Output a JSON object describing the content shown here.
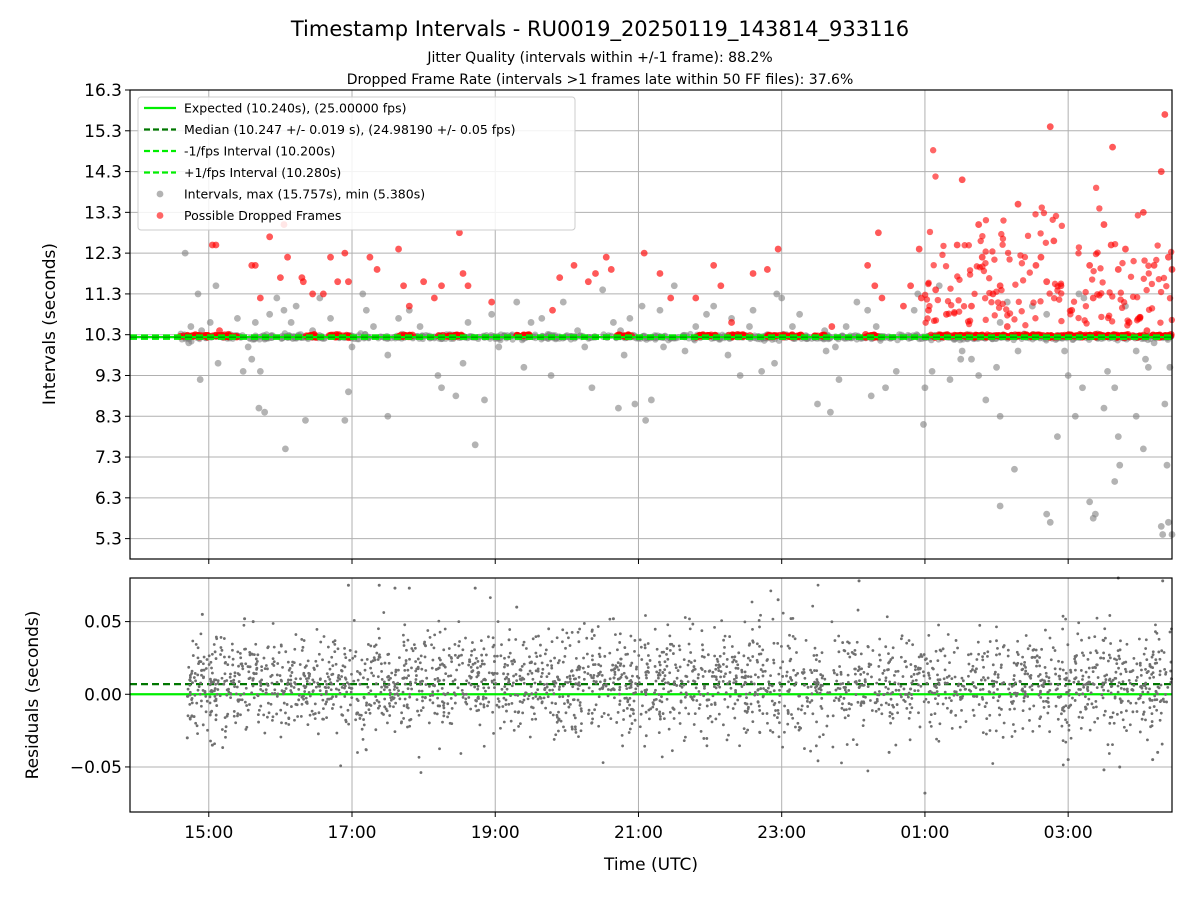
{
  "figure": {
    "title": "Timestamp Intervals - RU0019_20250119_143814_933116",
    "subtitle_1": "Jitter Quality (intervals within +/-1 frame): 88.2%",
    "subtitle_2": "Dropped Frame Rate (intervals >1 frames late within 50 FF files): 37.6%"
  },
  "chart_data": [
    {
      "type": "scatter",
      "panel": "intervals",
      "ylabel": "Intervals (seconds)",
      "xlabel": "",
      "x_unit": "hours since 14:00 UTC on first day",
      "xlim": [
        -0.1,
        14.45
      ],
      "ylim": [
        4.8,
        16.3
      ],
      "yticks": [
        "5.3",
        "6.3",
        "7.3",
        "8.3",
        "9.3",
        "10.3",
        "11.3",
        "12.3",
        "13.3",
        "14.3",
        "15.3",
        "16.3"
      ],
      "grid": true,
      "legend_position": "upper-left",
      "reference_lines": [
        {
          "name": "Expected (10.240s), (25.00000 fps)",
          "y": 10.24,
          "style": "solid",
          "color": "#00ee00"
        },
        {
          "name": "Median (10.247 +/- 0.019 s), (24.98190 +/- 0.05 fps)",
          "y": 10.247,
          "style": "dashed",
          "color": "#007700"
        },
        {
          "name": "-1/fps Interval (10.200s)",
          "y": 10.2,
          "style": "dashed",
          "color": "#00ee00"
        },
        {
          "name": "+1/fps Interval (10.280s)",
          "y": 10.28,
          "style": "dashed",
          "color": "#00ee00"
        }
      ],
      "series": [
        {
          "name": "Intervals, max (15.757s), min (5.380s)",
          "color": "#808080",
          "max": 15.757,
          "min": 5.38
        },
        {
          "name": "Possible Dropped Frames",
          "color": "#ff0000"
        }
      ],
      "gray_outliers": [
        [
          0.67,
          12.3
        ],
        [
          0.72,
          10.1
        ],
        [
          0.75,
          10.5
        ],
        [
          0.85,
          11.3
        ],
        [
          0.88,
          9.2
        ],
        [
          0.9,
          10.4
        ],
        [
          1.02,
          10.6
        ],
        [
          1.1,
          11.5
        ],
        [
          1.13,
          9.6
        ],
        [
          1.3,
          10.3
        ],
        [
          1.4,
          10.7
        ],
        [
          1.48,
          9.4
        ],
        [
          1.55,
          10.0
        ],
        [
          1.6,
          9.7
        ],
        [
          1.65,
          10.6
        ],
        [
          1.72,
          9.4
        ],
        [
          1.7,
          8.5
        ],
        [
          1.78,
          8.4
        ],
        [
          1.85,
          10.8
        ],
        [
          1.95,
          11.2
        ],
        [
          2.05,
          10.9
        ],
        [
          2.07,
          7.5
        ],
        [
          2.15,
          10.6
        ],
        [
          2.22,
          11.0
        ],
        [
          2.35,
          8.2
        ],
        [
          2.45,
          10.4
        ],
        [
          2.55,
          11.2
        ],
        [
          2.7,
          10.7
        ],
        [
          2.9,
          8.2
        ],
        [
          2.95,
          8.9
        ],
        [
          3.0,
          10.0
        ],
        [
          3.15,
          11.3
        ],
        [
          3.2,
          10.9
        ],
        [
          3.3,
          10.5
        ],
        [
          3.5,
          8.3
        ],
        [
          3.5,
          9.8
        ],
        [
          3.65,
          10.7
        ],
        [
          3.8,
          10.9
        ],
        [
          3.95,
          10.5
        ],
        [
          4.2,
          9.3
        ],
        [
          4.25,
          9.0
        ],
        [
          4.32,
          10.3
        ],
        [
          4.45,
          8.8
        ],
        [
          4.55,
          9.6
        ],
        [
          4.62,
          10.6
        ],
        [
          4.72,
          7.6
        ],
        [
          4.85,
          8.7
        ],
        [
          4.95,
          10.8
        ],
        [
          5.05,
          10.0
        ],
        [
          5.3,
          11.1
        ],
        [
          5.4,
          9.5
        ],
        [
          5.5,
          10.6
        ],
        [
          5.65,
          10.7
        ],
        [
          5.78,
          9.3
        ],
        [
          5.95,
          11.1
        ],
        [
          6.15,
          10.4
        ],
        [
          6.25,
          10.0
        ],
        [
          6.35,
          9.0
        ],
        [
          6.5,
          11.4
        ],
        [
          6.65,
          10.6
        ],
        [
          6.72,
          8.5
        ],
        [
          6.75,
          10.4
        ],
        [
          6.8,
          9.8
        ],
        [
          6.88,
          10.7
        ],
        [
          6.95,
          8.6
        ],
        [
          7.05,
          11.0
        ],
        [
          7.1,
          8.2
        ],
        [
          7.18,
          8.7
        ],
        [
          7.3,
          10.9
        ],
        [
          7.35,
          10.0
        ],
        [
          7.5,
          11.5
        ],
        [
          7.65,
          9.9
        ],
        [
          7.8,
          10.5
        ],
        [
          7.95,
          10.8
        ],
        [
          8.05,
          11.0
        ],
        [
          8.25,
          9.8
        ],
        [
          8.3,
          10.7
        ],
        [
          8.42,
          9.3
        ],
        [
          8.55,
          10.5
        ],
        [
          8.6,
          10.9
        ],
        [
          8.72,
          9.4
        ],
        [
          8.8,
          10.3
        ],
        [
          8.9,
          9.6
        ],
        [
          8.93,
          11.3
        ],
        [
          9.0,
          11.2
        ],
        [
          9.15,
          10.5
        ],
        [
          9.25,
          10.8
        ],
        [
          9.35,
          10.2
        ],
        [
          9.5,
          8.6
        ],
        [
          9.6,
          10.4
        ],
        [
          9.62,
          9.9
        ],
        [
          9.68,
          8.4
        ],
        [
          9.75,
          10.0
        ],
        [
          9.8,
          9.2
        ],
        [
          9.9,
          10.5
        ],
        [
          10.05,
          11.1
        ],
        [
          10.2,
          10.9
        ],
        [
          10.25,
          8.8
        ],
        [
          10.32,
          10.5
        ],
        [
          10.45,
          9.0
        ],
        [
          10.6,
          9.4
        ],
        [
          10.85,
          10.9
        ],
        [
          10.9,
          11.3
        ],
        [
          10.98,
          8.1
        ],
        [
          11.0,
          9.0
        ],
        [
          11.1,
          9.4
        ],
        [
          11.2,
          11.5
        ],
        [
          11.35,
          9.2
        ],
        [
          11.5,
          9.7
        ],
        [
          11.52,
          9.9
        ],
        [
          11.65,
          9.7
        ],
        [
          11.75,
          9.3
        ],
        [
          11.85,
          8.7
        ],
        [
          12.0,
          9.5
        ],
        [
          12.05,
          8.3
        ],
        [
          12.05,
          10.6
        ],
        [
          12.15,
          11.1
        ],
        [
          12.3,
          9.9
        ],
        [
          12.5,
          11.0
        ],
        [
          12.7,
          10.8
        ],
        [
          12.95,
          9.9
        ],
        [
          13.0,
          9.3
        ],
        [
          13.1,
          8.3
        ],
        [
          13.2,
          9.0
        ],
        [
          13.3,
          6.2
        ],
        [
          13.35,
          5.8
        ],
        [
          13.38,
          5.9
        ],
        [
          13.5,
          8.5
        ],
        [
          13.55,
          9.4
        ],
        [
          13.65,
          9.0
        ],
        [
          13.72,
          7.1
        ],
        [
          13.8,
          11.0
        ],
        [
          13.95,
          9.9
        ],
        [
          14.05,
          7.5
        ],
        [
          14.12,
          9.5
        ],
        [
          14.2,
          10.1
        ],
        [
          14.3,
          5.6
        ],
        [
          14.35,
          8.6
        ],
        [
          14.42,
          9.5
        ],
        [
          14.45,
          5.4
        ],
        [
          12.05,
          6.1
        ],
        [
          12.25,
          7.0
        ],
        [
          12.7,
          5.9
        ],
        [
          12.75,
          5.7
        ],
        [
          12.85,
          7.8
        ],
        [
          13.65,
          6.7
        ],
        [
          13.7,
          7.8
        ],
        [
          13.95,
          8.3
        ],
        [
          14.32,
          5.4
        ],
        [
          14.38,
          7.1
        ],
        [
          14.4,
          5.7
        ],
        [
          14.08,
          9.7
        ],
        [
          13.15,
          11.3
        ],
        [
          13.22,
          11.2
        ]
      ],
      "red_outliers": [
        [
          1.05,
          12.5
        ],
        [
          1.1,
          12.5
        ],
        [
          1.15,
          10.4
        ],
        [
          1.6,
          12.0
        ],
        [
          1.65,
          12.0
        ],
        [
          1.72,
          11.2
        ],
        [
          1.85,
          12.7
        ],
        [
          2.0,
          11.7
        ],
        [
          2.05,
          13.0
        ],
        [
          2.1,
          12.2
        ],
        [
          2.3,
          11.7
        ],
        [
          2.32,
          11.6
        ],
        [
          2.45,
          11.3
        ],
        [
          2.6,
          11.3
        ],
        [
          2.7,
          12.2
        ],
        [
          2.8,
          11.6
        ],
        [
          2.9,
          12.3
        ],
        [
          2.95,
          11.6
        ],
        [
          3.25,
          12.2
        ],
        [
          3.35,
          11.9
        ],
        [
          3.65,
          12.4
        ],
        [
          3.72,
          11.5
        ],
        [
          3.8,
          11.0
        ],
        [
          4.0,
          11.6
        ],
        [
          4.15,
          11.2
        ],
        [
          4.25,
          11.5
        ],
        [
          4.5,
          12.8
        ],
        [
          4.55,
          11.8
        ],
        [
          4.62,
          11.5
        ],
        [
          4.95,
          11.1
        ],
        [
          5.8,
          10.9
        ],
        [
          5.9,
          11.7
        ],
        [
          6.1,
          12.0
        ],
        [
          6.3,
          11.6
        ],
        [
          6.4,
          11.8
        ],
        [
          6.55,
          12.2
        ],
        [
          6.62,
          11.9
        ],
        [
          7.08,
          12.3
        ],
        [
          7.3,
          11.8
        ],
        [
          7.45,
          11.2
        ],
        [
          7.8,
          11.2
        ],
        [
          8.05,
          12.0
        ],
        [
          8.15,
          11.5
        ],
        [
          8.3,
          10.6
        ],
        [
          8.6,
          11.8
        ],
        [
          8.8,
          11.9
        ],
        [
          8.95,
          12.4
        ],
        [
          9.7,
          10.5
        ],
        [
          10.2,
          12.0
        ],
        [
          10.3,
          11.5
        ],
        [
          10.35,
          12.8
        ],
        [
          10.4,
          11.2
        ],
        [
          10.7,
          11.0
        ],
        [
          10.8,
          11.5
        ],
        [
          10.92,
          12.4
        ],
        [
          10.95,
          11.2
        ],
        [
          11.05,
          10.9
        ],
        [
          11.15,
          11.4
        ],
        [
          11.3,
          10.8
        ],
        [
          11.45,
          12.5
        ],
        [
          11.52,
          14.1
        ],
        [
          11.65,
          11.0
        ],
        [
          11.75,
          13.0
        ],
        [
          11.8,
          12.2
        ],
        [
          11.95,
          11.3
        ],
        [
          12.05,
          11.5
        ],
        [
          12.15,
          10.5
        ],
        [
          12.3,
          13.5
        ],
        [
          12.55,
          12.0
        ],
        [
          12.62,
          12.2
        ],
        [
          12.7,
          11.6
        ],
        [
          12.75,
          15.4
        ],
        [
          12.8,
          12.6
        ],
        [
          12.9,
          11.5
        ],
        [
          13.05,
          10.9
        ],
        [
          13.3,
          12.0
        ],
        [
          13.35,
          11.2
        ],
        [
          13.5,
          13.0
        ],
        [
          13.6,
          12.5
        ],
        [
          13.62,
          14.9
        ],
        [
          13.7,
          11.9
        ],
        [
          13.8,
          12.4
        ],
        [
          13.85,
          10.6
        ],
        [
          14.0,
          10.7
        ],
        [
          14.05,
          13.3
        ],
        [
          14.1,
          10.4
        ],
        [
          14.2,
          12.0
        ],
        [
          14.3,
          14.3
        ],
        [
          14.35,
          15.7
        ],
        [
          14.4,
          12.2
        ],
        [
          14.45,
          11.9
        ]
      ],
      "red_band": {
        "y": 10.24,
        "segments": [
          [
            0.6,
            1.0
          ],
          [
            1.05,
            1.4
          ],
          [
            2.35,
            2.55
          ],
          [
            2.65,
            3.0
          ],
          [
            3.65,
            3.85
          ],
          [
            4.2,
            4.55
          ],
          [
            5.3,
            5.5
          ],
          [
            6.7,
            6.9
          ],
          [
            7.8,
            8.1
          ],
          [
            8.25,
            8.6
          ],
          [
            8.8,
            9.3
          ],
          [
            9.45,
            9.6
          ],
          [
            10.15,
            10.35
          ],
          [
            11.05,
            14.45
          ]
        ]
      },
      "gray_band": {
        "y": 10.24,
        "range": [
          0.6,
          14.45
        ]
      }
    },
    {
      "type": "scatter",
      "panel": "residuals",
      "ylabel": "Residuals (seconds)",
      "xlabel": "Time (UTC)",
      "x_unit": "hours since 14:00 UTC on first day",
      "xlim": [
        -0.1,
        14.45
      ],
      "ylim": [
        -0.081,
        0.08
      ],
      "yticks": [
        "−0.05",
        "0.00",
        "0.05"
      ],
      "ytick_values": [
        -0.05,
        0.0,
        0.05
      ],
      "xticks": [
        "15:00",
        "17:00",
        "19:00",
        "21:00",
        "23:00",
        "01:00",
        "03:00"
      ],
      "xtick_values": [
        1,
        3,
        5,
        7,
        9,
        11,
        13
      ],
      "grid": true,
      "reference_lines": [
        {
          "y": 0.0,
          "style": "solid",
          "color": "#00ee00"
        },
        {
          "y": 0.007,
          "style": "dashed",
          "color": "#007700"
        }
      ],
      "series": [
        {
          "color": "#707070",
          "x_range": [
            0.7,
            14.45
          ],
          "approx_std": 0.018
        }
      ],
      "extreme_points": [
        [
          0.91,
          0.055
        ],
        [
          1.5,
          0.052
        ],
        [
          1.62,
          0.05
        ],
        [
          2.95,
          0.075
        ],
        [
          3.38,
          0.075
        ],
        [
          3.6,
          0.073
        ],
        [
          3.8,
          0.073
        ],
        [
          4.72,
          0.073
        ],
        [
          5.3,
          0.06
        ],
        [
          6.65,
          0.052
        ],
        [
          8.95,
          0.065
        ],
        [
          10.08,
          0.078
        ],
        [
          11.0,
          -0.068
        ],
        [
          13.7,
          0.08
        ],
        [
          14.32,
          0.078
        ],
        [
          0.7,
          -0.03
        ],
        [
          1.05,
          -0.035
        ],
        [
          13.5,
          -0.052
        ],
        [
          13.72,
          -0.05
        ],
        [
          14.18,
          -0.045
        ],
        [
          14.25,
          -0.04
        ],
        [
          10.5,
          -0.04
        ],
        [
          13.0,
          -0.045
        ]
      ]
    }
  ]
}
